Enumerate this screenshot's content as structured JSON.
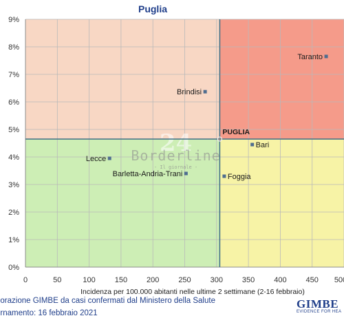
{
  "chart_data": {
    "type": "scatter",
    "title": "Puglia",
    "xlabel": "Incidenza per 100.000 abitanti nelle ultime 2 settimane (2-16 febbraio)",
    "ylabel": "",
    "xlim": [
      0,
      500
    ],
    "ylim": [
      0,
      9
    ],
    "x_ticks": [
      "0",
      "50",
      "100",
      "150",
      "200",
      "250",
      "300",
      "350",
      "400",
      "450",
      "500"
    ],
    "y_ticks": [
      "0%",
      "1%",
      "2%",
      "3%",
      "4%",
      "5%",
      "6%",
      "7%",
      "8%",
      "9%"
    ],
    "grid": true,
    "reference": {
      "label": "PUGLIA",
      "x": 305,
      "y": 4.65
    },
    "quadrant_colors": {
      "top_left": "#f8d7c4",
      "top_right": "#f59b8a",
      "bottom_left": "#cdeeb5",
      "bottom_right": "#f7f3a6"
    },
    "marker_color": "#4f6d8f",
    "points": [
      {
        "label": "Taranto",
        "x": 472,
        "y": 7.65
      },
      {
        "label": "Brindisi",
        "x": 282,
        "y": 6.37
      },
      {
        "label": "Bari",
        "x": 356,
        "y": 4.45
      },
      {
        "label": "Lecce",
        "x": 132,
        "y": 3.95
      },
      {
        "label": "Barletta-Andria-Trani",
        "x": 252,
        "y": 3.4
      },
      {
        "label": "Foggia",
        "x": 312,
        "y": 3.3
      }
    ]
  },
  "watermark": {
    "name": "Borderline",
    "tagline": "Il giornale",
    "number": "24"
  },
  "footer": {
    "line1": "borazione GIMBE da casi confermati dal Ministero della Salute",
    "line2": "ornamento: 16 febbraio 2021"
  },
  "logo": {
    "word": "GIMBE",
    "tagline": "EVIDENCE FOR HEA"
  }
}
